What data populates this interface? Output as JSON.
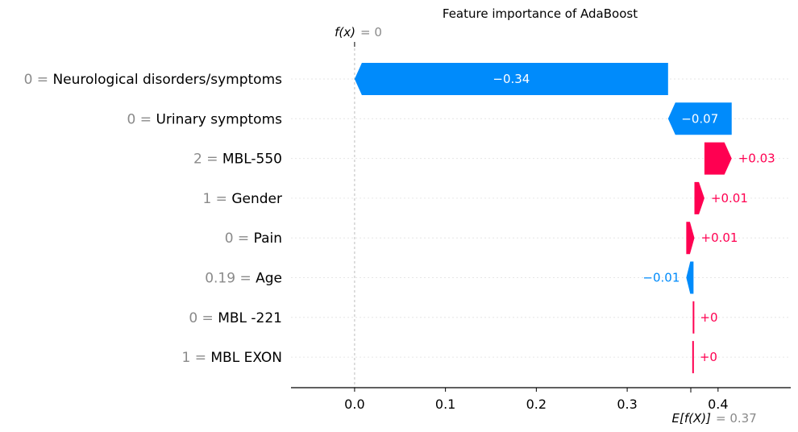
{
  "chart_data": {
    "type": "waterfall",
    "title": "Feature importance of AdaBoost",
    "fx_label": "f(x)",
    "fx_value_label": "= 0",
    "fx": 0,
    "efx_label": "E[f(X)]",
    "efx_value_label": "= 0.37",
    "efx": 0.37,
    "xlim": [
      -0.07,
      0.48
    ],
    "xticks": [
      {
        "value": 0.0,
        "label": "0.0"
      },
      {
        "value": 0.1,
        "label": "0.1"
      },
      {
        "value": 0.2,
        "label": "0.2"
      },
      {
        "value": 0.3,
        "label": "0.3"
      },
      {
        "value": 0.4,
        "label": "0.4"
      }
    ],
    "colors": {
      "positive": "#ff0051",
      "negative": "#008bfb"
    },
    "features": [
      {
        "value": "0",
        "name": "Neurological disorders/symptoms",
        "start": 0.345,
        "end": 0.0,
        "contribution": -0.34,
        "label": "−0.34"
      },
      {
        "value": "0",
        "name": "Urinary symptoms",
        "start": 0.415,
        "end": 0.345,
        "contribution": -0.07,
        "label": "−0.07"
      },
      {
        "value": "2",
        "name": "MBL-550",
        "start": 0.385,
        "end": 0.415,
        "contribution": 0.03,
        "label": "+0.03"
      },
      {
        "value": "1",
        "name": "Gender",
        "start": 0.374,
        "end": 0.385,
        "contribution": 0.01,
        "label": "+0.01"
      },
      {
        "value": "0",
        "name": "Pain",
        "start": 0.365,
        "end": 0.374,
        "contribution": 0.01,
        "label": "+0.01"
      },
      {
        "value": "0.19",
        "name": "Age",
        "start": 0.373,
        "end": 0.365,
        "contribution": -0.01,
        "label": "−0.01"
      },
      {
        "value": "0",
        "name": "MBL -221",
        "start": 0.3725,
        "end": 0.373,
        "contribution": 0.0,
        "label": "+0"
      },
      {
        "value": "1",
        "name": "MBL EXON",
        "start": 0.372,
        "end": 0.3725,
        "contribution": 0.0,
        "label": "+0"
      }
    ]
  }
}
